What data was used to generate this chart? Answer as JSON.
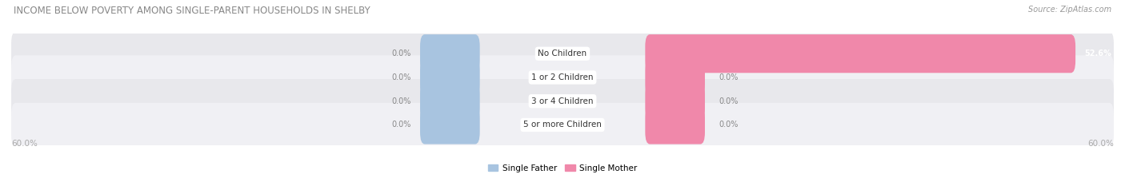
{
  "title": "INCOME BELOW POVERTY AMONG SINGLE-PARENT HOUSEHOLDS IN SHELBY",
  "source_text": "Source: ZipAtlas.com",
  "categories": [
    "No Children",
    "1 or 2 Children",
    "3 or 4 Children",
    "5 or more Children"
  ],
  "single_father": [
    0.0,
    0.0,
    0.0,
    0.0
  ],
  "single_mother": [
    52.6,
    0.0,
    0.0,
    0.0
  ],
  "max_val": 60.0,
  "father_color": "#a8c4e0",
  "mother_color": "#f088aa",
  "bg_color": "#ffffff",
  "row_bg": "#e8e8ec",
  "row_bg_alt": "#f0f0f4",
  "title_color": "#888888",
  "value_color": "#888888",
  "axis_label_color": "#aaaaaa",
  "legend_father_label": "Single Father",
  "legend_mother_label": "Single Mother",
  "mother_label_color_large": "#ffffff",
  "mother_label_color_small": "#888888"
}
